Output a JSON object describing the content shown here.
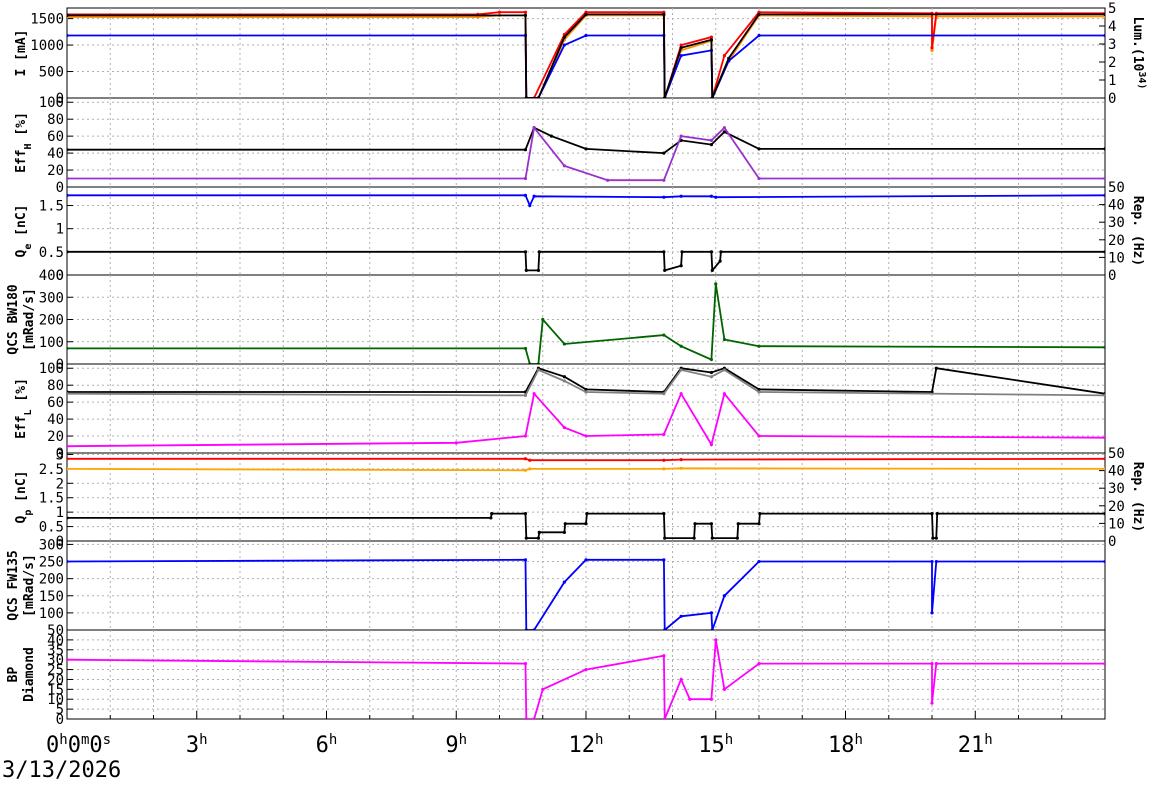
{
  "date_label": "3/13/2026",
  "chart_data": {
    "type": "line",
    "x_ticks": [
      "0h0m0s",
      "3h",
      "6h",
      "9h",
      "12h",
      "15h",
      "18h",
      "21h"
    ],
    "x_range_hours": [
      0,
      24
    ],
    "grid": true,
    "panels": [
      {
        "id": "current",
        "ylabel_lines": [
          "I [mA]"
        ],
        "yticks": [
          "0",
          "500",
          "1000",
          "1500"
        ],
        "yrange": [
          0,
          1700
        ],
        "right_label_lines": [
          "Lum.(10^34)"
        ],
        "right_ticks": [
          "0",
          "1",
          "2",
          "3",
          "4",
          "5"
        ],
        "right_range": [
          0,
          5
        ],
        "series": [
          {
            "color": "#ff8c00",
            "x": [
              0,
              9.5,
              10.0,
              10.6,
              10.62,
              10.9,
              11.5,
              12.0,
              13.8,
              13.82,
              14.2,
              14.9,
              14.92,
              15.3,
              16.0,
              20.0,
              20.0,
              20.1,
              24
            ],
            "y": [
              1530,
              1530,
              1560,
              1560,
              0,
              0,
              1100,
              1560,
              1560,
              0,
              900,
              1080,
              0,
              700,
              1560,
              1540,
              900,
              1540,
              1540
            ]
          },
          {
            "color": "#ff0000",
            "x": [
              0,
              9.5,
              10.0,
              10.6,
              10.62,
              10.8,
              11.5,
              12.0,
              13.8,
              13.82,
              14.2,
              14.9,
              14.92,
              15.2,
              16.0,
              20.0,
              20.0,
              20.1,
              24
            ],
            "y": [
              1580,
              1580,
              1620,
              1620,
              0,
              0,
              1200,
              1620,
              1620,
              0,
              1000,
              1150,
              0,
              800,
              1620,
              1600,
              950,
              1600,
              1600
            ]
          },
          {
            "color": "#0000ff",
            "x": [
              0,
              10.6,
              10.62,
              10.9,
              11.5,
              12.0,
              13.8,
              13.82,
              14.2,
              14.9,
              14.92,
              15.3,
              16.0,
              24
            ],
            "y": [
              1180,
              1180,
              0,
              0,
              1000,
              1180,
              1180,
              0,
              800,
              900,
              0,
              700,
              1180,
              1180
            ]
          },
          {
            "color": "#000000",
            "x": [
              0,
              10.6,
              10.62,
              10.9,
              11.5,
              12.0,
              13.8,
              13.82,
              14.2,
              14.9,
              14.92,
              15.3,
              16.0,
              24
            ],
            "y": [
              1560,
              1560,
              0,
              0,
              1150,
              1580,
              1580,
              0,
              950,
              1100,
              0,
              750,
              1580,
              1580
            ]
          }
        ]
      },
      {
        "id": "effh",
        "ylabel_lines": [
          "Eff_H [%]"
        ],
        "yticks": [
          "0",
          "20",
          "40",
          "60",
          "80",
          "100"
        ],
        "yrange": [
          0,
          105
        ],
        "series": [
          {
            "color": "#000000",
            "x": [
              0,
              10.6,
              10.8,
              11.2,
              12.0,
              13.8,
              14.2,
              14.9,
              15.2,
              16.0,
              24
            ],
            "y": [
              44,
              44,
              70,
              60,
              45,
              40,
              55,
              50,
              65,
              45,
              45
            ]
          },
          {
            "color": "#9932cc",
            "x": [
              0,
              10.6,
              10.8,
              11.5,
              12.5,
              13.8,
              14.2,
              14.9,
              15.2,
              16.0,
              24
            ],
            "y": [
              10,
              10,
              70,
              25,
              8,
              8,
              60,
              55,
              70,
              10,
              10
            ]
          }
        ]
      },
      {
        "id": "qe",
        "ylabel_lines": [
          "Q_e [nC]"
        ],
        "yticks": [
          "0",
          "0.5",
          "1",
          "1.5"
        ],
        "yrange": [
          0,
          1.9
        ],
        "right_label_lines": [
          "Rep. (Hz)"
        ],
        "right_ticks": [
          "0",
          "10",
          "20",
          "30",
          "40",
          "50"
        ],
        "right_range": [
          0,
          50
        ],
        "series": [
          {
            "color": "#0000ff",
            "x": [
              0,
              10.6,
              10.7,
              10.8,
              13.8,
              14.2,
              14.9,
              15.0,
              24
            ],
            "y": [
              1.72,
              1.72,
              1.5,
              1.7,
              1.68,
              1.7,
              1.7,
              1.68,
              1.72
            ]
          },
          {
            "color": "#000000",
            "x": [
              0,
              10.6,
              10.62,
              10.9,
              10.92,
              13.8,
              13.82,
              14.2,
              14.22,
              14.9,
              14.92,
              15.1,
              15.12,
              24
            ],
            "y": [
              0.5,
              0.5,
              0.1,
              0.1,
              0.5,
              0.5,
              0.1,
              0.2,
              0.5,
              0.5,
              0.1,
              0.3,
              0.5,
              0.5
            ]
          }
        ]
      },
      {
        "id": "qcs_bw",
        "ylabel_lines": [
          "QCS BW180",
          "[mRad/s]"
        ],
        "yticks": [
          "0",
          "100",
          "200",
          "300",
          "400"
        ],
        "yrange": [
          0,
          400
        ],
        "series": [
          {
            "color": "#006400",
            "x": [
              0,
              10.6,
              10.7,
              10.9,
              11.0,
              11.5,
              13.8,
              14.2,
              14.9,
              15.0,
              15.2,
              16.0,
              24
            ],
            "y": [
              70,
              70,
              0,
              0,
              200,
              90,
              130,
              80,
              20,
              360,
              110,
              80,
              75
            ]
          }
        ]
      },
      {
        "id": "effl",
        "ylabel_lines": [
          "Eff_L [%]"
        ],
        "yticks": [
          "0",
          "20",
          "40",
          "60",
          "80",
          "100"
        ],
        "yrange": [
          0,
          105
        ],
        "series": [
          {
            "color": "#000000",
            "x": [
              0,
              10.6,
              10.9,
              11.5,
              12.0,
              13.8,
              14.2,
              14.9,
              15.2,
              16.0,
              20.0,
              20.1,
              24
            ],
            "y": [
              72,
              72,
              100,
              90,
              75,
              72,
              100,
              95,
              100,
              75,
              72,
              100,
              70
            ]
          },
          {
            "color": "#808080",
            "x": [
              0,
              10.6,
              10.9,
              11.5,
              12.0,
              13.8,
              14.2,
              14.9,
              15.2,
              16.0,
              24
            ],
            "y": [
              70,
              68,
              98,
              85,
              72,
              70,
              98,
              90,
              98,
              72,
              68
            ]
          },
          {
            "color": "#ff00ff",
            "x": [
              0,
              9.0,
              10.6,
              10.8,
              11.5,
              12.0,
              13.8,
              14.2,
              14.9,
              15.2,
              16.0,
              24
            ],
            "y": [
              8,
              12,
              20,
              70,
              30,
              20,
              22,
              70,
              10,
              70,
              20,
              18
            ]
          }
        ]
      },
      {
        "id": "qp",
        "ylabel_lines": [
          "Q_p [nC]"
        ],
        "yticks": [
          "0",
          "0.5",
          "1",
          "1.5",
          "2",
          "2.5",
          "3"
        ],
        "yrange": [
          0,
          3.05
        ],
        "right_label_lines": [
          "Rep. (Hz)"
        ],
        "right_ticks": [
          "0",
          "10",
          "20",
          "30",
          "40",
          "50"
        ],
        "right_range": [
          0,
          50
        ],
        "series": [
          {
            "color": "#ff0000",
            "x": [
              0,
              10.6,
              10.7,
              13.8,
              14.2,
              24
            ],
            "y": [
              2.85,
              2.85,
              2.8,
              2.8,
              2.82,
              2.85
            ]
          },
          {
            "color": "#ffa500",
            "x": [
              0,
              10.6,
              10.7,
              13.8,
              14.2,
              24
            ],
            "y": [
              2.5,
              2.45,
              2.5,
              2.5,
              2.52,
              2.5
            ]
          },
          {
            "color": "#000000",
            "x": [
              0,
              9.8,
              9.82,
              10.6,
              10.62,
              10.9,
              10.92,
              11.5,
              11.52,
              12.0,
              12.02,
              13.8,
              13.82,
              14.5,
              14.52,
              14.9,
              14.92,
              15.5,
              15.52,
              16.0,
              16.02,
              20.0,
              20.02,
              20.1,
              20.12,
              24
            ],
            "y": [
              0.8,
              0.8,
              0.95,
              0.95,
              0.1,
              0.1,
              0.3,
              0.3,
              0.6,
              0.6,
              0.95,
              0.95,
              0.1,
              0.1,
              0.6,
              0.6,
              0.1,
              0.1,
              0.6,
              0.6,
              0.95,
              0.95,
              0.1,
              0.1,
              0.95,
              0.95
            ]
          }
        ]
      },
      {
        "id": "qcs_fw",
        "ylabel_lines": [
          "QCS FW135",
          "[mRad/s]"
        ],
        "yticks": [
          "50",
          "100",
          "150",
          "200",
          "250",
          "300"
        ],
        "yrange": [
          50,
          310
        ],
        "series": [
          {
            "color": "#0000ff",
            "x": [
              0,
              10.6,
              10.62,
              10.8,
              11.5,
              12.0,
              13.8,
              13.82,
              14.2,
              14.9,
              14.92,
              15.2,
              16.0,
              20.0,
              20.0,
              20.1,
              24
            ],
            "y": [
              250,
              255,
              50,
              50,
              190,
              255,
              255,
              50,
              90,
              100,
              50,
              150,
              250,
              250,
              100,
              250,
              250
            ]
          }
        ]
      },
      {
        "id": "bp_diamond",
        "ylabel_lines": [
          "BP",
          "Diamond"
        ],
        "yticks": [
          "0",
          "5",
          "10",
          "15",
          "20",
          "25",
          "30",
          "35",
          "40"
        ],
        "yrange": [
          0,
          45
        ],
        "series": [
          {
            "color": "#ff00ff",
            "x": [
              0,
              10.6,
              10.62,
              10.8,
              11.0,
              12.0,
              13.8,
              13.82,
              14.2,
              14.4,
              14.9,
              15.0,
              15.2,
              16.0,
              20.0,
              20.0,
              20.1,
              24
            ],
            "y": [
              30,
              28,
              0,
              0,
              15,
              25,
              32,
              0,
              20,
              10,
              10,
              40,
              15,
              28,
              28,
              8,
              28,
              28
            ]
          }
        ]
      }
    ]
  }
}
